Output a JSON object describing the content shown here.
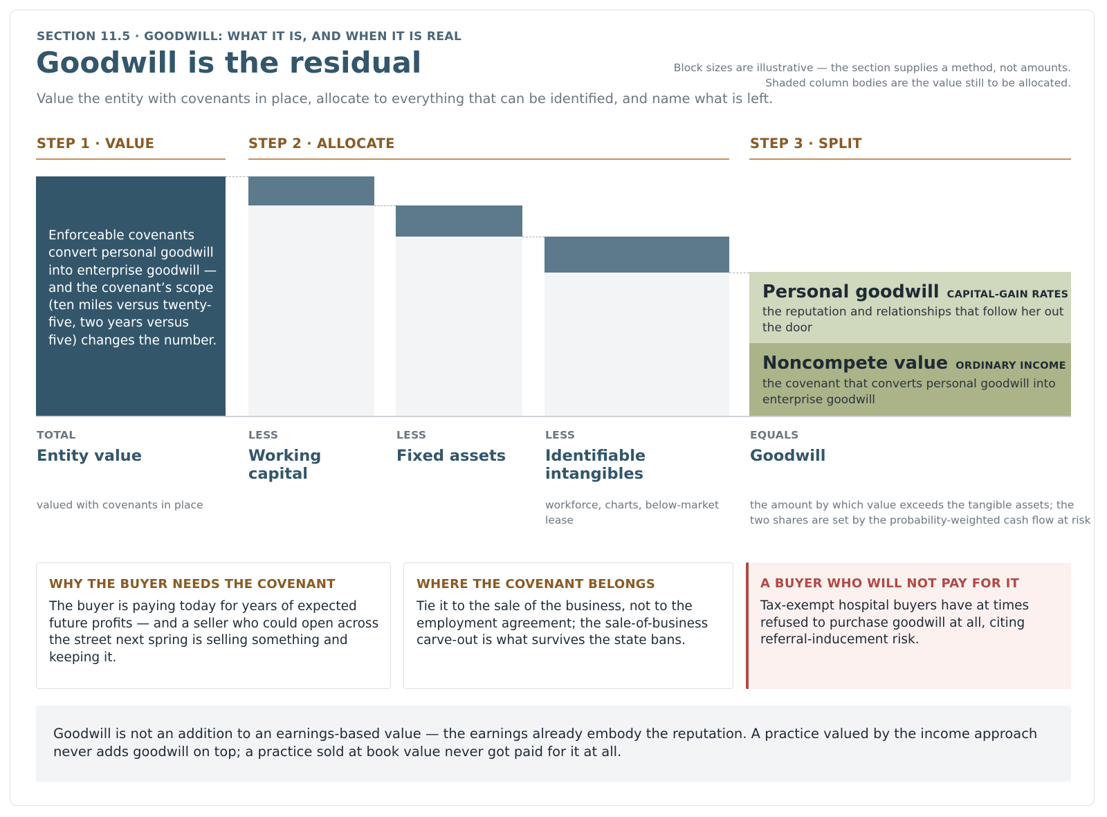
{
  "header": {
    "kicker": "SECTION 11.5 · GOODWILL: WHAT IT IS, AND WHEN IT IS REAL",
    "title": "Goodwill is the residual",
    "note_line1": "Block sizes are illustrative — the section supplies a method, not amounts.",
    "note_line2": "Shaded column bodies are the value still to be allocated.",
    "subtitle": "Value the entity with covenants in place, allocate to everything that can be identified, and name what is left."
  },
  "steps": [
    {
      "label": "STEP 1 · VALUE"
    },
    {
      "label": "STEP 2 · ALLOCATE"
    },
    {
      "label": "STEP 3 · SPLIT"
    }
  ],
  "total_block_text": "Enforceable covenants convert personal goodwill into enterprise goodwill — and the covenant’s scope (ten miles versus twenty-five, two years versus five) changes the number.",
  "columns": [
    {
      "kicker": "TOTAL",
      "title": "Entity value",
      "sub": "valued with covenants in place"
    },
    {
      "kicker": "LESS",
      "title": "Working capital",
      "sub": ""
    },
    {
      "kicker": "LESS",
      "title": "Fixed assets",
      "sub": ""
    },
    {
      "kicker": "LESS",
      "title": "Identifiable intangibles",
      "sub": "workforce, charts, below-market lease"
    },
    {
      "kicker": "EQUALS",
      "title": "Goodwill",
      "sub": "the amount by which value exceeds the tangible assets; the two shares are set by the probability-weighted cash flow at risk"
    }
  ],
  "goodwill_split": [
    {
      "title": "Personal goodwill",
      "tag": "CAPITAL-GAIN RATES",
      "desc": "the reputation and relationships that follow her out the door",
      "color": "#d0d8bd"
    },
    {
      "title": "Noncompete value",
      "tag": "ORDINARY INCOME",
      "desc": "the covenant that converts personal goodwill into enterprise goodwill",
      "color": "#abb488"
    }
  ],
  "cards": [
    {
      "heading": "WHY THE BUYER NEEDS THE COVENANT",
      "body": "The buyer is paying today for years of expected future profits — and a seller who could open across the street next spring is selling something and keeping it."
    },
    {
      "heading": "WHERE THE COVENANT BELONGS",
      "body": "Tie it to the sale of the business, not to the employment agreement; the sale-of-business carve-out is what survives the state bans."
    },
    {
      "heading": "A BUYER WHO WILL NOT PAY FOR IT",
      "body": "Tax-exempt hospital buyers have at times refused to purchase goodwill at all, citing referral-inducement risk."
    }
  ],
  "footer": "Goodwill is not an addition to an earnings-based value — the earnings already embody the reputation. A practice valued by the income approach never adds goodwill on top; a practice sold at book value never got paid for it at all.",
  "colors": {
    "navy": "#33566b",
    "slate": "#5c7a8c",
    "copper": "#8a5a24",
    "warn": "#b04a46"
  }
}
